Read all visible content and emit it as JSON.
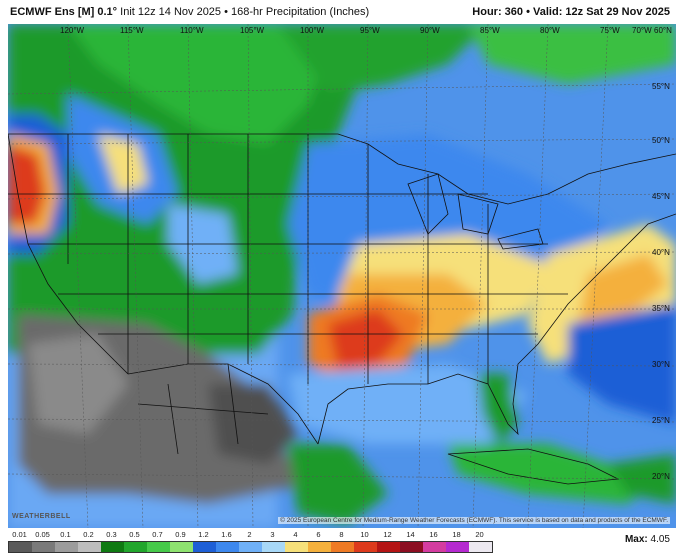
{
  "header": {
    "model": "ECMWF Ens [M] 0.1°",
    "init": "Init 12z 14 Nov 2025",
    "separator": "•",
    "product": "168-hr Precipitation (Inches)",
    "hour_label": "Hour:",
    "hour_value": "360",
    "valid_label": "Valid:",
    "valid_value": "12z Sat 29 Nov 2025"
  },
  "map": {
    "longitude_labels": [
      "120°W",
      "115°W",
      "110°W",
      "105°W",
      "100°W",
      "95°W",
      "90°W",
      "85°W",
      "80°W",
      "75°W",
      "70°W",
      "60°N"
    ],
    "latitude_labels": [
      "55°N",
      "50°N",
      "45°N",
      "40°N",
      "35°N",
      "30°N",
      "25°N",
      "20°N"
    ],
    "watermark": "WEATHERBELL",
    "credits": "© 2025 European Centre for Medium-Range Weather Forecasts (ECMWF). This service is based on data and products of the ECMWF."
  },
  "legend": {
    "labels": [
      "0.01",
      "0.05",
      "0.1",
      "0.2",
      "0.3",
      "0.5",
      "0.7",
      "0.9",
      "1.2",
      "1.6",
      "2",
      "3",
      "4",
      "6",
      "8",
      "10",
      "12",
      "14",
      "16",
      "18",
      "20"
    ],
    "colors": [
      "#5a5a5a",
      "#7a7a7a",
      "#9c9c9c",
      "#bdbdbd",
      "#0f7a12",
      "#22a62c",
      "#46c94a",
      "#8ee26f",
      "#1e5fd6",
      "#3d88ee",
      "#6fb0f7",
      "#a8d8f7",
      "#f6e07a",
      "#f4b03c",
      "#ee7a24",
      "#dd3a1c",
      "#b41414",
      "#8c0e22",
      "#d43ca0",
      "#b52ad0",
      "#ece8f0"
    ]
  },
  "max": {
    "label": "Max:",
    "value": "4.05"
  }
}
